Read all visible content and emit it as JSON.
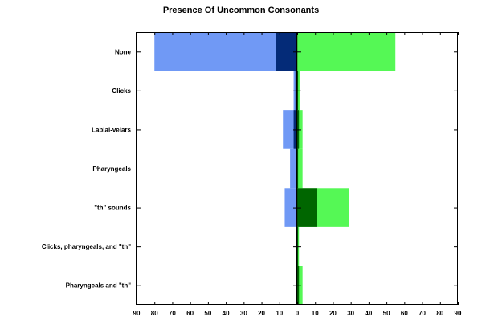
{
  "chart_data": {
    "type": "bar",
    "title": "Presence Of Uncommon Consonants",
    "categories": [
      "None",
      "Clicks",
      "Labial-velars",
      "Pharyngeals",
      "\"th\" sounds",
      "Clicks, pharyngeals, and \"th\"",
      "Pharyngeals and \"th\""
    ],
    "xlim": [
      -90,
      90
    ],
    "xticks": [
      90,
      80,
      70,
      60,
      50,
      40,
      30,
      20,
      10,
      0,
      10,
      20,
      30,
      40,
      50,
      60,
      70,
      80,
      90
    ],
    "series": [
      {
        "side": "left",
        "color": "#7099f5",
        "values": [
          80,
          2,
          8,
          4,
          7,
          0.5,
          0.5
        ]
      },
      {
        "side": "left",
        "color": "#042b78",
        "values": [
          12,
          1,
          2,
          0.5,
          0,
          0,
          0
        ]
      },
      {
        "side": "right",
        "color": "#55f855",
        "values": [
          55,
          1.5,
          3,
          3,
          29,
          1,
          3
        ]
      },
      {
        "side": "right",
        "color": "#006600",
        "values": [
          0,
          0.5,
          1,
          0.5,
          11,
          0.5,
          1
        ]
      }
    ],
    "grid": false,
    "legend": "none"
  }
}
